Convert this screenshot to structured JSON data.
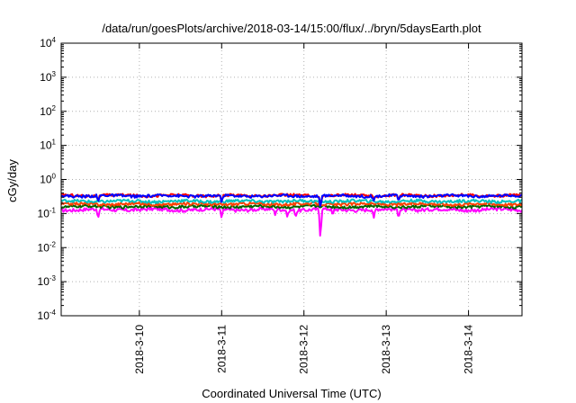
{
  "chart_data": {
    "type": "line",
    "title": "/data/run/goesPlots/archive/2018-03-14/15:00/flux/../bryn/5daysEarth.plot",
    "xlabel": "Coordinated Universal Time (UTC)",
    "ylabel": "cGy/day",
    "yscale": "log",
    "ylim": [
      0.0001,
      10000
    ],
    "xlim": [
      -0.95,
      4.65
    ],
    "x_ticks": [
      {
        "label": "2018-3-10",
        "value": 0
      },
      {
        "label": "2018-3-11",
        "value": 1
      },
      {
        "label": "2018-3-12",
        "value": 2
      },
      {
        "label": "2018-3-13",
        "value": 3
      },
      {
        "label": "2018-3-14",
        "value": 4
      }
    ],
    "y_ticks": [
      {
        "base": "10",
        "exp": "4",
        "value": 10000
      },
      {
        "base": "10",
        "exp": "3",
        "value": 1000
      },
      {
        "base": "10",
        "exp": "2",
        "value": 100
      },
      {
        "base": "10",
        "exp": "1",
        "value": 10
      },
      {
        "base": "10",
        "exp": "0",
        "value": 1
      },
      {
        "base": "10",
        "exp": "-1",
        "value": 0.1
      },
      {
        "base": "10",
        "exp": "-2",
        "value": 0.01
      },
      {
        "base": "10",
        "exp": "-3",
        "value": 0.001
      },
      {
        "base": "10",
        "exp": "-4",
        "value": 0.0001
      }
    ],
    "grid": true,
    "series": [
      {
        "color": "#ff00ff",
        "base": 0.13,
        "amp": 0.015,
        "dips": [
          [
            -0.5,
            0.07
          ],
          [
            1.0,
            0.07
          ],
          [
            1.65,
            0.09
          ],
          [
            1.8,
            0.075
          ],
          [
            1.9,
            0.08
          ],
          [
            2.2,
            0.016
          ],
          [
            2.35,
            0.085
          ],
          [
            2.85,
            0.075
          ],
          [
            3.15,
            0.075
          ],
          [
            3.95,
            0.11
          ]
        ]
      },
      {
        "color": "#006400",
        "base": 0.16,
        "amp": 0.015,
        "dips": []
      },
      {
        "color": "#ff4000",
        "base": 0.19,
        "amp": 0.018,
        "dips": []
      },
      {
        "color": "#00c0c0",
        "base": 0.23,
        "amp": 0.022,
        "dips": []
      },
      {
        "color": "#ff0000",
        "base": 0.34,
        "amp": 0.03,
        "dips": [
          [
            -0.5,
            0.24
          ],
          [
            1.0,
            0.22
          ],
          [
            2.2,
            0.15
          ],
          [
            2.85,
            0.25
          ],
          [
            3.15,
            0.25
          ]
        ]
      },
      {
        "color": "#0000ff",
        "base": 0.33,
        "amp": 0.03,
        "dips": [
          [
            -0.5,
            0.22
          ],
          [
            1.0,
            0.2
          ],
          [
            2.2,
            0.14
          ],
          [
            2.85,
            0.24
          ],
          [
            3.15,
            0.23
          ]
        ]
      }
    ]
  }
}
